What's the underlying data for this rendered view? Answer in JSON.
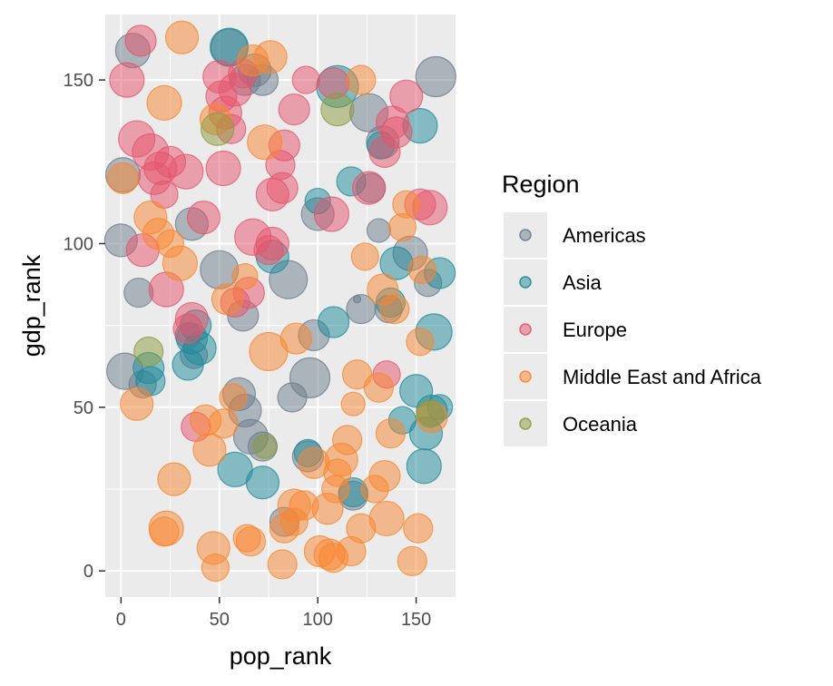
{
  "chart_data": {
    "type": "scatter",
    "xlabel": "pop_rank",
    "ylabel": "gdp_rank",
    "xlim": [
      -8,
      170
    ],
    "ylim": [
      -8,
      170
    ],
    "x_ticks": [
      0,
      50,
      100,
      150
    ],
    "y_ticks": [
      0,
      50,
      100,
      150
    ],
    "grid": true,
    "legend": {
      "title": "Region",
      "placement": "right",
      "entries": [
        "Americas",
        "Asia",
        "Europe",
        "Middle East and Africa",
        "Oceania"
      ]
    },
    "colors": {
      "Americas": "#6b7b8c",
      "Asia": "#1d8a99",
      "Europe": "#e5546c",
      "Middle East and Africa": "#f9862f",
      "Oceania": "#8b9b3e"
    },
    "point_opacity": 0.5,
    "size_range": [
      1,
      24
    ],
    "series": [
      {
        "name": "Americas",
        "points": [
          [
            6,
            159,
            19
          ],
          [
            1,
            121,
            19
          ],
          [
            0,
            101,
            18
          ],
          [
            9,
            85,
            16
          ],
          [
            11,
            57,
            15
          ],
          [
            2,
            61,
            20
          ],
          [
            36,
            106,
            18
          ],
          [
            50,
            92,
            21
          ],
          [
            55,
            160,
            20
          ],
          [
            63,
            150,
            17
          ],
          [
            68,
            153,
            18
          ],
          [
            72,
            150,
            17
          ],
          [
            62,
            78,
            17
          ],
          [
            66,
            41,
            19
          ],
          [
            60,
            54,
            18
          ],
          [
            63,
            49,
            18
          ],
          [
            72,
            38,
            16
          ],
          [
            85,
            89,
            21
          ],
          [
            87,
            53,
            16
          ],
          [
            96,
            59,
            22
          ],
          [
            98,
            72,
            17
          ],
          [
            100,
            109,
            18
          ],
          [
            122,
            80,
            16
          ],
          [
            120,
            83,
            4
          ],
          [
            126,
            140,
            21
          ],
          [
            127,
            117,
            16
          ],
          [
            131,
            104,
            13
          ],
          [
            133,
            131,
            18
          ],
          [
            136,
            80,
            15
          ],
          [
            147,
            97,
            19
          ],
          [
            156,
            88,
            15
          ],
          [
            160,
            151,
            22
          ],
          [
            83,
            15,
            16
          ],
          [
            95,
            35,
            17
          ],
          [
            118,
            23,
            16
          ],
          [
            37,
            66,
            15
          ],
          [
            34,
            72,
            14
          ]
        ]
      },
      {
        "name": "Asia",
        "points": [
          [
            55,
            160,
            21
          ],
          [
            34,
            63,
            17
          ],
          [
            36,
            71,
            17
          ],
          [
            40,
            68,
            18
          ],
          [
            38,
            75,
            17
          ],
          [
            14,
            62,
            17
          ],
          [
            15,
            58,
            16
          ],
          [
            58,
            31,
            19
          ],
          [
            72,
            27,
            18
          ],
          [
            77,
            96,
            18
          ],
          [
            100,
            113,
            14
          ],
          [
            108,
            76,
            17
          ],
          [
            110,
            148,
            23
          ],
          [
            117,
            119,
            16
          ],
          [
            118,
            24,
            16
          ],
          [
            132,
            130,
            15
          ],
          [
            140,
            94,
            18
          ],
          [
            143,
            46,
            15
          ],
          [
            150,
            55,
            18
          ],
          [
            152,
            136,
            19
          ],
          [
            154,
            32,
            19
          ],
          [
            155,
            42,
            18
          ],
          [
            158,
            49,
            17
          ],
          [
            159,
            73,
            20
          ],
          [
            162,
            91,
            17
          ],
          [
            162,
            50,
            14
          ],
          [
            95,
            36,
            15
          ],
          [
            137,
            82,
            16
          ]
        ]
      },
      {
        "name": "Europe",
        "points": [
          [
            3,
            150,
            19
          ],
          [
            10,
            162,
            17
          ],
          [
            8,
            132,
            20
          ],
          [
            15,
            128,
            20
          ],
          [
            17,
            120,
            18
          ],
          [
            20,
            123,
            18
          ],
          [
            25,
            125,
            17
          ],
          [
            22,
            115,
            15
          ],
          [
            11,
            98,
            18
          ],
          [
            23,
            86,
            19
          ],
          [
            33,
            122,
            19
          ],
          [
            42,
            108,
            18
          ],
          [
            34,
            74,
            16
          ],
          [
            36,
            77,
            18
          ],
          [
            38,
            44,
            16
          ],
          [
            52,
            123,
            19
          ],
          [
            50,
            151,
            18
          ],
          [
            51,
            145,
            17
          ],
          [
            53,
            140,
            18
          ],
          [
            56,
            135,
            16
          ],
          [
            58,
            147,
            18
          ],
          [
            62,
            152,
            16
          ],
          [
            58,
            82,
            16
          ],
          [
            65,
            85,
            17
          ],
          [
            67,
            102,
            20
          ],
          [
            75,
            98,
            16
          ],
          [
            77,
            100,
            18
          ],
          [
            81,
            124,
            16
          ],
          [
            83,
            130,
            17
          ],
          [
            82,
            117,
            17
          ],
          [
            77,
            115,
            18
          ],
          [
            88,
            141,
            17
          ],
          [
            94,
            150,
            15
          ],
          [
            107,
            109,
            19
          ],
          [
            126,
            117,
            18
          ],
          [
            134,
            128,
            17
          ],
          [
            135,
            60,
            15
          ],
          [
            138,
            137,
            18
          ],
          [
            140,
            134,
            17
          ],
          [
            145,
            145,
            18
          ],
          [
            152,
            112,
            17
          ],
          [
            157,
            111,
            19
          ],
          [
            108,
            149,
            17
          ]
        ]
      },
      {
        "name": "Middle East and Africa",
        "points": [
          [
            1,
            120,
            17
          ],
          [
            8,
            51,
            18
          ],
          [
            15,
            108,
            18
          ],
          [
            19,
            103,
            17
          ],
          [
            22,
            143,
            19
          ],
          [
            25,
            100,
            15
          ],
          [
            30,
            94,
            19
          ],
          [
            31,
            163,
            18
          ],
          [
            22,
            12,
            16
          ],
          [
            23,
            13,
            19
          ],
          [
            27,
            28,
            18
          ],
          [
            43,
            46,
            17
          ],
          [
            45,
            37,
            18
          ],
          [
            48,
            1,
            15
          ],
          [
            47,
            7,
            18
          ],
          [
            52,
            45,
            16
          ],
          [
            57,
            53,
            15
          ],
          [
            54,
            83,
            17
          ],
          [
            63,
            90,
            14
          ],
          [
            64,
            10,
            15
          ],
          [
            66,
            9,
            16
          ],
          [
            73,
            131,
            19
          ],
          [
            75,
            67,
            21
          ],
          [
            76,
            157,
            18
          ],
          [
            83,
            13,
            16
          ],
          [
            82,
            2,
            16
          ],
          [
            88,
            20,
            18
          ],
          [
            88,
            15,
            15
          ],
          [
            89,
            71,
            17
          ],
          [
            93,
            20,
            16
          ],
          [
            98,
            33,
            17
          ],
          [
            101,
            6,
            17
          ],
          [
            105,
            19,
            17
          ],
          [
            106,
            5,
            17
          ],
          [
            109,
            25,
            15
          ],
          [
            110,
            30,
            15
          ],
          [
            112,
            34,
            18
          ],
          [
            115,
            40,
            16
          ],
          [
            118,
            51,
            13
          ],
          [
            120,
            60,
            16
          ],
          [
            122,
            13,
            16
          ],
          [
            122,
            150,
            16
          ],
          [
            124,
            96,
            15
          ],
          [
            129,
            25,
            15
          ],
          [
            131,
            56,
            16
          ],
          [
            133,
            86,
            17
          ],
          [
            134,
            29,
            17
          ],
          [
            135,
            16,
            19
          ],
          [
            137,
            42,
            16
          ],
          [
            139,
            80,
            16
          ],
          [
            143,
            105,
            15
          ],
          [
            145,
            112,
            15
          ],
          [
            148,
            3,
            16
          ],
          [
            151,
            13,
            16
          ],
          [
            152,
            70,
            15
          ],
          [
            153,
            92,
            15
          ],
          [
            158,
            47,
            17
          ],
          [
            117,
            6,
            16
          ],
          [
            108,
            4,
            16
          ],
          [
            48,
            138,
            17
          ],
          [
            67,
            156,
            17
          ]
        ]
      },
      {
        "name": "Oceania",
        "points": [
          [
            14,
            67,
            16
          ],
          [
            49,
            135,
            18
          ],
          [
            110,
            141,
            18
          ],
          [
            157,
            48,
            15
          ],
          [
            73,
            38,
            13
          ]
        ]
      }
    ]
  }
}
